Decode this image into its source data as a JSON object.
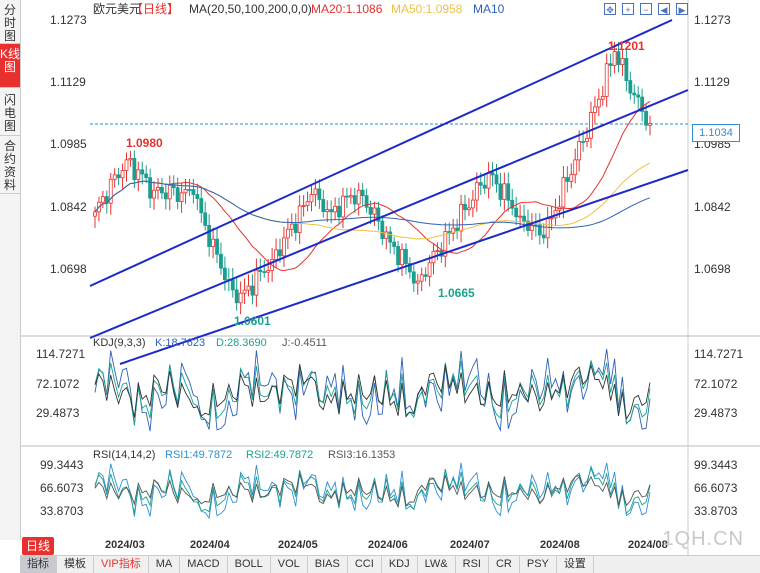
{
  "sidebar": {
    "tabs": [
      {
        "label": "分时图",
        "active": false
      },
      {
        "label": "K线图",
        "active": true
      },
      {
        "label": "闪电图",
        "active": false
      },
      {
        "label": "合约资料",
        "active": false
      }
    ]
  },
  "header": {
    "instrument": "欧元美元",
    "period": "【日线】",
    "ma_label": "MA(20,50,100,200,0,0)",
    "ma20": "MA20:1.1086",
    "ma50": "MA50:1.0958",
    "ma10": "MA10"
  },
  "price_axis": [
    "1.1273",
    "1.1129",
    "1.0985",
    "1.0842",
    "1.0698"
  ],
  "current_price": "1.1034",
  "annotations": {
    "high1": "1.0980",
    "low1": "1.0601",
    "low2": "1.0665",
    "high2": "1.1201"
  },
  "kdj": {
    "label": "KDJ(9,3,3)",
    "k": "K:18.7623",
    "d": "D:28.3690",
    "j": "J:-0.4511",
    "axis": [
      "114.7271",
      "72.1072",
      "29.4873"
    ]
  },
  "rsi": {
    "label": "RSI(14,14,2)",
    "rsi1": "RSI1:49.7872",
    "rsi2": "RSI2:49.7872",
    "rsi3": "RSI3:16.1353",
    "axis": [
      "99.3443",
      "66.6073",
      "33.8703"
    ]
  },
  "dates": [
    "2024/03",
    "2024/04",
    "2024/05",
    "2024/06",
    "2024/07",
    "2024/08",
    "2024/08"
  ],
  "period_button": "日线",
  "toolbar": [
    "指标",
    "模板",
    "VIP指标",
    "MA",
    "MACD",
    "BOLL",
    "VOL",
    "BIAS",
    "CCI",
    "KDJ",
    "LW&",
    "RSI",
    "CR",
    "PSY",
    "设置"
  ],
  "watermark": "1QH.CN",
  "colors": {
    "up": "#e8312f",
    "down": "#1a9e8f",
    "ma20": "#e8312f",
    "ma50": "#f0c040",
    "ma10": "#2d62b8",
    "channel": "#1e2ac8"
  },
  "chart_data": {
    "type": "candlestick",
    "title": "欧元美元 日线",
    "ylim": [
      1.0601,
      1.1273
    ],
    "extremes": {
      "high1": 1.098,
      "low1": 1.0601,
      "low2": 1.0665,
      "high2": 1.1201
    },
    "last": 1.1034,
    "ma20_last": 1.1086,
    "ma50_last": 1.0958,
    "anchors": [
      [
        0,
        1.083
      ],
      [
        8,
        1.095
      ],
      [
        15,
        1.088
      ],
      [
        25,
        1.087
      ],
      [
        32,
        1.07
      ],
      [
        36,
        1.062
      ],
      [
        45,
        1.072
      ],
      [
        55,
        1.087
      ],
      [
        60,
        1.083
      ],
      [
        67,
        1.088
      ],
      [
        75,
        1.076
      ],
      [
        82,
        1.067
      ],
      [
        90,
        1.078
      ],
      [
        100,
        1.092
      ],
      [
        108,
        1.082
      ],
      [
        114,
        1.077
      ],
      [
        122,
        1.095
      ],
      [
        128,
        1.109
      ],
      [
        132,
        1.12
      ],
      [
        137,
        1.11
      ],
      [
        141,
        1.1034
      ]
    ]
  }
}
